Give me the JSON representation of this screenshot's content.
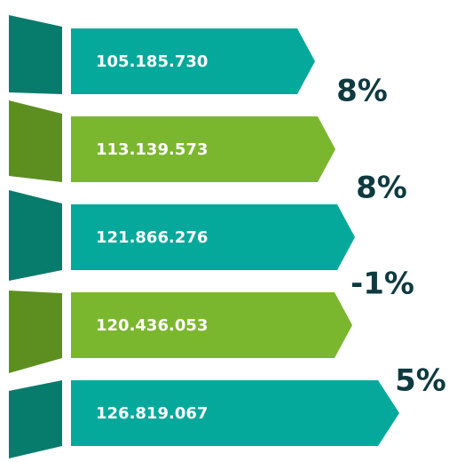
{
  "items": [
    {
      "value": "105.185.730"
    },
    {
      "value": "113.139.573"
    },
    {
      "value": "121.866.276"
    },
    {
      "value": "120.436.053"
    },
    {
      "value": "126.819.067"
    }
  ],
  "changes": [
    "8%",
    "8%",
    "-1%",
    "5%"
  ]
}
